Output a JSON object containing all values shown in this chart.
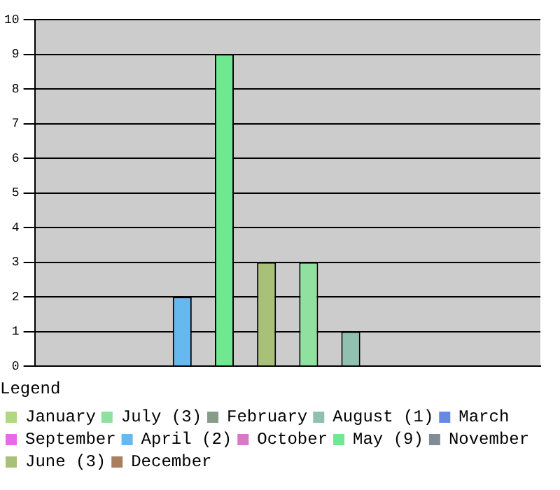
{
  "chart_data": {
    "type": "bar",
    "legend_title": "Legend",
    "categories": [
      null,
      null,
      null,
      null,
      null,
      null,
      null,
      null,
      null,
      null,
      null,
      null
    ],
    "series": [
      {
        "name": "January",
        "color": "#b0d880",
        "values": [
          0,
          null,
          null,
          null,
          null,
          null,
          null,
          null,
          null,
          null,
          null,
          null
        ]
      },
      {
        "name": "February",
        "color": "#889c88",
        "values": [
          null,
          0,
          null,
          null,
          null,
          null,
          null,
          null,
          null,
          null,
          null,
          null
        ]
      },
      {
        "name": "March",
        "color": "#6888e8",
        "values": [
          null,
          null,
          0,
          null,
          null,
          null,
          null,
          null,
          null,
          null,
          null,
          null
        ]
      },
      {
        "name": "April (2)",
        "color": "#68b8f0",
        "values": [
          null,
          null,
          null,
          2,
          null,
          null,
          null,
          null,
          null,
          null,
          null,
          null
        ]
      },
      {
        "name": "May (9)",
        "color": "#70e890",
        "values": [
          null,
          null,
          null,
          null,
          9,
          null,
          null,
          null,
          null,
          null,
          null,
          null
        ]
      },
      {
        "name": "June (3)",
        "color": "#a8c078",
        "values": [
          null,
          null,
          null,
          null,
          null,
          3,
          null,
          null,
          null,
          null,
          null,
          null
        ]
      },
      {
        "name": "July (3)",
        "color": "#90e0a0",
        "values": [
          null,
          null,
          null,
          null,
          null,
          null,
          3,
          null,
          null,
          null,
          null,
          null
        ]
      },
      {
        "name": "August (1)",
        "color": "#90c0b0",
        "values": [
          null,
          null,
          null,
          null,
          null,
          null,
          null,
          1,
          null,
          null,
          null,
          null
        ]
      },
      {
        "name": "September",
        "color": "#e868e8",
        "values": [
          null,
          null,
          null,
          null,
          null,
          null,
          null,
          null,
          0,
          null,
          null,
          null
        ]
      },
      {
        "name": "October",
        "color": "#d878c8",
        "values": [
          null,
          null,
          null,
          null,
          null,
          null,
          null,
          null,
          null,
          0,
          null,
          null
        ]
      },
      {
        "name": "November",
        "color": "#808c98",
        "values": [
          null,
          null,
          null,
          null,
          null,
          null,
          null,
          null,
          null,
          null,
          0,
          null
        ]
      },
      {
        "name": "December",
        "color": "#a88060",
        "values": [
          null,
          null,
          null,
          null,
          null,
          null,
          null,
          null,
          null,
          null,
          null,
          0
        ]
      }
    ],
    "ylim": [
      0,
      10
    ],
    "yticks": [
      0,
      1,
      2,
      3,
      4,
      5,
      6,
      7,
      8,
      9,
      10
    ],
    "grid": "y",
    "legend": "bottom",
    "tick_labels": "y"
  }
}
